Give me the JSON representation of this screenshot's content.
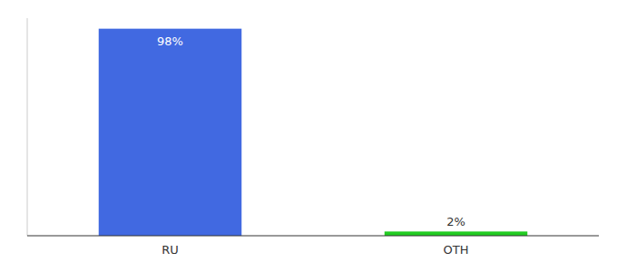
{
  "chart_data": {
    "type": "bar",
    "categories": [
      "RU",
      "OTH"
    ],
    "values": [
      98,
      2
    ],
    "value_labels": [
      "98%",
      "2%"
    ],
    "colors": [
      "#4169e1",
      "#22cc22"
    ],
    "ylim": [
      0,
      103
    ],
    "data_labels": true,
    "tick_labels": "x"
  }
}
